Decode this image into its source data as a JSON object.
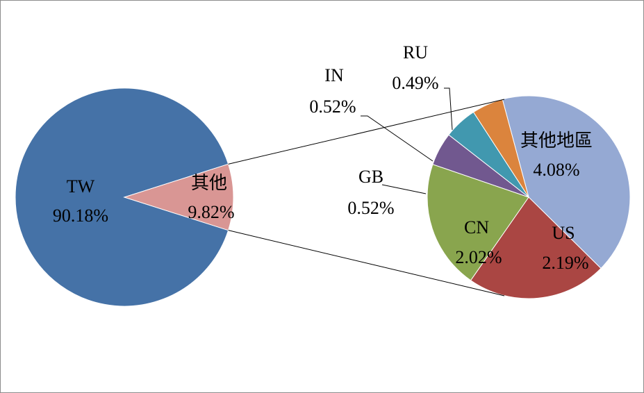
{
  "chart_data": {
    "type": "bar-of-pie",
    "main_pie": {
      "slices": [
        {
          "label": "TW",
          "value": 90.18,
          "value_label": "90.18%",
          "color": "#4572A7"
        },
        {
          "label": "其他",
          "value": 9.82,
          "value_label": "9.82%",
          "color": "#D99694"
        }
      ]
    },
    "secondary_pie": {
      "slices": [
        {
          "label": "其他地區",
          "value": 4.08,
          "value_label": "4.08%",
          "color": "#95A9D3"
        },
        {
          "label": "US",
          "value": 2.19,
          "value_label": "2.19%",
          "color": "#AA4643"
        },
        {
          "label": "CN",
          "value": 2.02,
          "value_label": "2.02%",
          "color": "#89A54E"
        },
        {
          "label": "GB",
          "value": 0.52,
          "value_label": "0.52%",
          "color": "#71588F"
        },
        {
          "label": "IN",
          "value": 0.52,
          "value_label": "0.52%",
          "color": "#4198AF"
        },
        {
          "label": "RU",
          "value": 0.49,
          "value_label": "0.49%",
          "color": "#DB843D"
        }
      ]
    },
    "legend": "none"
  }
}
